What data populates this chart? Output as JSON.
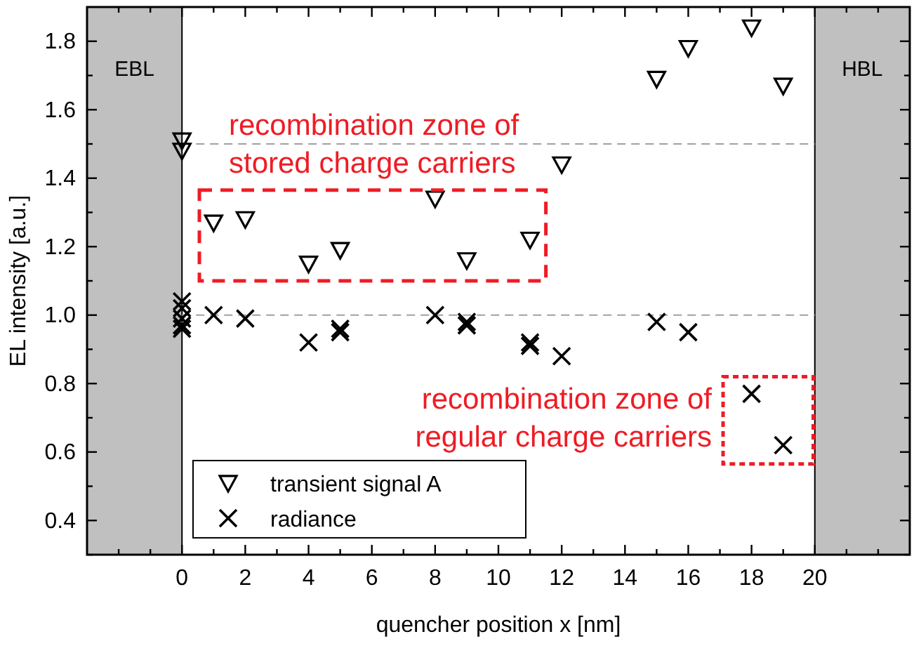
{
  "chart_data": {
    "type": "scatter",
    "xlabel": "quencher position x [nm]",
    "ylabel": "EL intensity [a.u.]",
    "xlim": [
      -3,
      23
    ],
    "ylim": [
      0.3,
      1.9
    ],
    "xticks": [
      {
        "value": -2,
        "label": null
      },
      {
        "value": -1,
        "label": null
      },
      0,
      {
        "value": 1,
        "label": null
      },
      2,
      {
        "value": 3,
        "label": null
      },
      4,
      {
        "value": 5,
        "label": null
      },
      6,
      {
        "value": 7,
        "label": null
      },
      8,
      {
        "value": 9,
        "label": null
      },
      10,
      {
        "value": 11,
        "label": null
      },
      12,
      {
        "value": 13,
        "label": null
      },
      14,
      {
        "value": 15,
        "label": null
      },
      16,
      {
        "value": 17,
        "label": null
      },
      18,
      {
        "value": 19,
        "label": null
      },
      20,
      {
        "value": 21,
        "label": null
      },
      {
        "value": 22,
        "label": null
      }
    ],
    "yticks": [
      {
        "value": 0.3,
        "label": null
      },
      0.4,
      {
        "value": 0.5,
        "label": null
      },
      0.6,
      {
        "value": 0.7,
        "label": null
      },
      0.8,
      {
        "value": 0.9,
        "label": null
      },
      {
        "value": 1,
        "label": "1.0"
      },
      {
        "value": 1.1,
        "label": null
      },
      1.2,
      {
        "value": 1.3,
        "label": null
      },
      1.4,
      {
        "value": 1.5,
        "label": null
      },
      1.6,
      {
        "value": 1.7,
        "label": null
      },
      1.8
    ],
    "series": [
      {
        "name": "transient signal A",
        "color": "#000000",
        "marker": "triangle",
        "x": [
          0,
          0,
          1,
          2,
          4,
          5,
          8,
          9,
          11,
          12,
          15,
          16,
          18,
          19
        ],
        "values": [
          1.51,
          1.48,
          1.27,
          1.28,
          1.15,
          1.19,
          1.34,
          1.16,
          1.22,
          1.44,
          1.69,
          1.78,
          1.84,
          1.67
        ]
      },
      {
        "name": "radiance",
        "color": "#000000",
        "marker": "cross",
        "x": [
          0,
          0,
          0,
          0,
          0,
          1,
          2,
          4,
          5,
          5,
          8,
          9,
          9,
          11,
          11,
          12,
          15,
          16,
          18,
          19
        ],
        "values": [
          1.04,
          1.02,
          0.99,
          0.97,
          0.96,
          1.0,
          0.99,
          0.92,
          0.96,
          0.95,
          1.0,
          0.98,
          0.97,
          0.92,
          0.91,
          0.88,
          0.98,
          0.95,
          0.77,
          0.62
        ]
      }
    ],
    "bands": [
      {
        "axis": "x",
        "from": -3,
        "to": 0,
        "label": "EBL",
        "color": "#c0c0c0"
      },
      {
        "axis": "x",
        "from": 20,
        "to": 23,
        "label": "HBL",
        "color": "#c0c0c0"
      }
    ],
    "ref_lines": [
      {
        "axis": "y",
        "value": 1.5,
        "color": "#a0a0a0",
        "line_style": "dashed"
      },
      {
        "axis": "y",
        "value": 1.0,
        "color": "#a0a0a0",
        "line_style": "dashed"
      }
    ],
    "annotations": [
      "recombination zone of\nstored charge carriers",
      "recombination zone of\nregular charge carriers"
    ],
    "legend": "bottom left"
  }
}
